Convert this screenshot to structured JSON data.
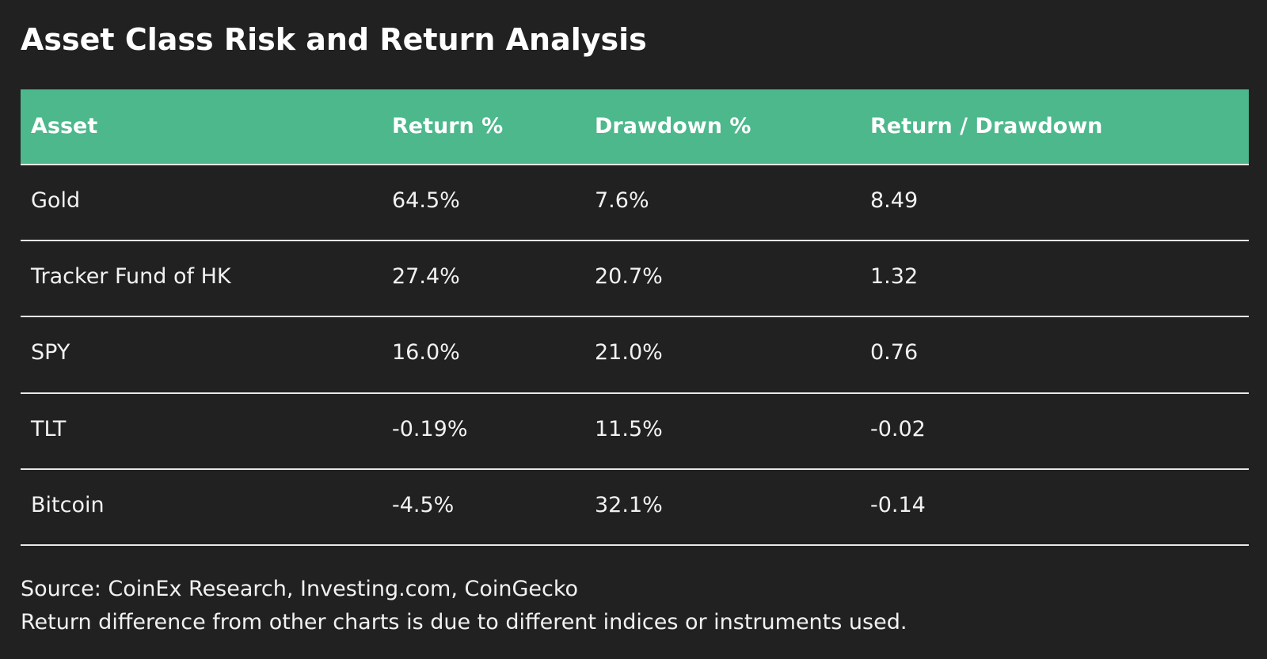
{
  "header": {
    "title": "Asset Class Risk and Return Analysis"
  },
  "table": {
    "columns": [
      "Asset",
      "Return %",
      "Drawdown %",
      "Return / Drawdown"
    ],
    "rows": [
      [
        "Gold",
        "64.5%",
        "7.6%",
        "8.49"
      ],
      [
        "Tracker Fund of HK",
        "27.4%",
        "20.7%",
        "1.32"
      ],
      [
        "SPY",
        "16.0%",
        "21.0%",
        "0.76"
      ],
      [
        "TLT",
        "-0.19%",
        "11.5%",
        "-0.02"
      ],
      [
        "Bitcoin",
        "-4.5%",
        "32.1%",
        "-0.14"
      ]
    ]
  },
  "footer": {
    "notes": [
      "Source: CoinEx Research, Investing.com, CoinGecko",
      "Return difference from other charts is due to different indices or instruments used."
    ]
  }
}
